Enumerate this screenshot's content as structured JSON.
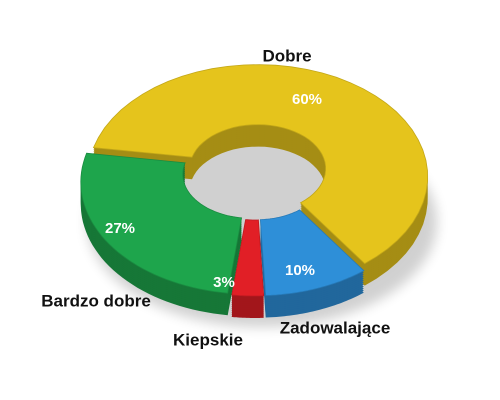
{
  "chart_data": {
    "type": "donut",
    "categories": [
      "Dobre",
      "Zadowalające",
      "Kiepskie",
      "Bardzo dobre"
    ],
    "values": [
      60,
      10,
      3,
      27
    ],
    "value_labels": [
      "60%",
      "10%",
      "3%",
      "27%"
    ],
    "colors": [
      "#e5c41c",
      "#2e8fd8",
      "#e11f26",
      "#1ea54c"
    ]
  }
}
